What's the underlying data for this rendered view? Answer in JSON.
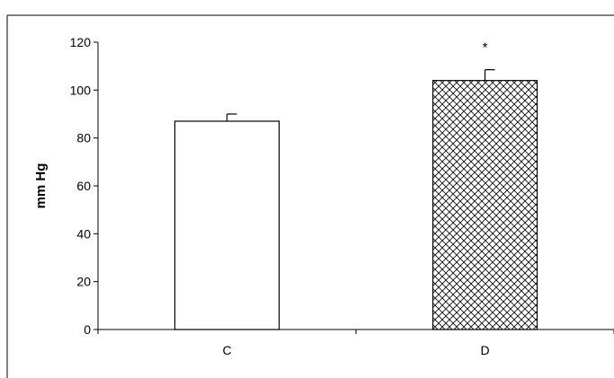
{
  "chart_data": {
    "type": "bar",
    "title": "",
    "xlabel": "",
    "ylabel": "mm Hg",
    "ylim": [
      0,
      120
    ],
    "yticks": [
      0,
      20,
      40,
      60,
      80,
      100,
      120
    ],
    "grid": false,
    "legend": "none",
    "categories": [
      "C",
      "D"
    ],
    "values": [
      87,
      104
    ],
    "errors": [
      3,
      4.5
    ],
    "bar_fills": [
      "white",
      "crosshatch"
    ],
    "annotations": [
      {
        "category": "D",
        "text": "*"
      }
    ],
    "colors": {
      "axis": "#000000",
      "bar_edge": "#000000",
      "bar_fill": "#ffffff",
      "hatch": "#000000"
    }
  }
}
